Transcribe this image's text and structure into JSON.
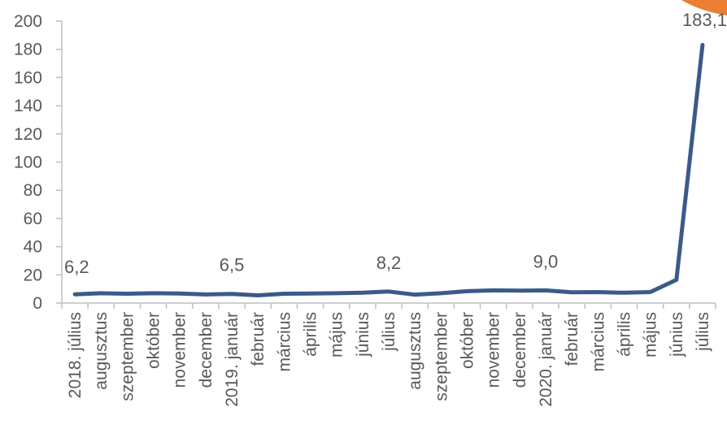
{
  "chart_data": {
    "type": "line",
    "title": "",
    "xlabel": "",
    "ylabel": "",
    "ylim": [
      0,
      200
    ],
    "yticks": [
      0,
      20,
      40,
      60,
      80,
      100,
      120,
      140,
      160,
      180,
      200
    ],
    "grid": false,
    "legend": "none",
    "categories": [
      "2018. július",
      "augusztus",
      "szeptember",
      "október",
      "november",
      "december",
      "2019. január",
      "február",
      "március",
      "április",
      "május",
      "június",
      "július",
      "augusztus",
      "szeptember",
      "október",
      "november",
      "december",
      "2020. január",
      "február",
      "március",
      "április",
      "május",
      "június",
      "július"
    ],
    "series": [
      {
        "color": "#3b5a8a",
        "values": [
          6.2,
          7.0,
          6.6,
          7.0,
          6.8,
          6.1,
          6.5,
          5.5,
          6.6,
          6.8,
          7.0,
          7.3,
          8.2,
          6.0,
          7.0,
          8.4,
          9.0,
          8.8,
          9.0,
          7.6,
          7.8,
          7.3,
          7.8,
          16.5,
          183.1
        ]
      }
    ],
    "data_labels": [
      {
        "index": 0,
        "text": "6,2"
      },
      {
        "index": 6,
        "text": "6,5"
      },
      {
        "index": 12,
        "text": "8,2"
      },
      {
        "index": 18,
        "text": "9,0"
      },
      {
        "index": 24,
        "text": "183,1"
      }
    ],
    "accent_color": "#ed7d31"
  }
}
